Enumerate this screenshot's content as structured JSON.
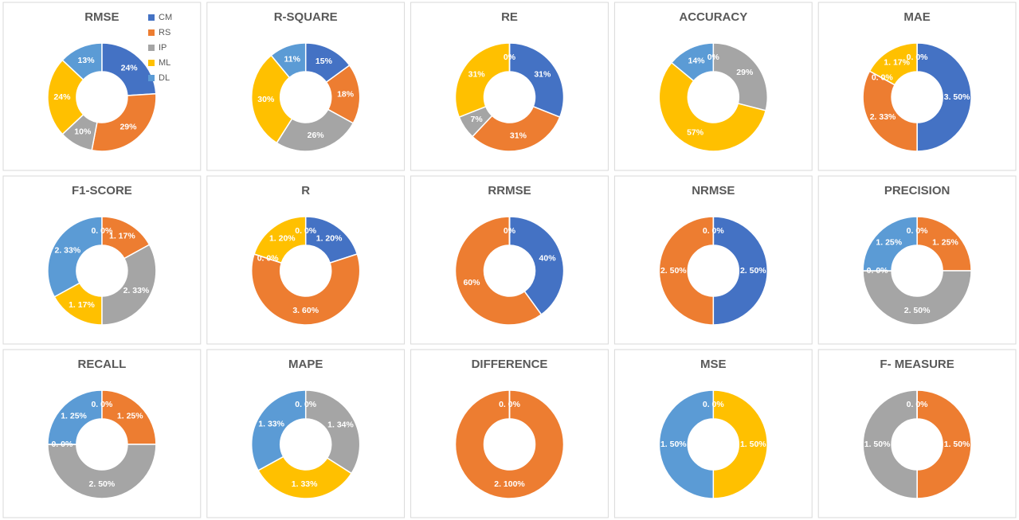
{
  "chart_data": [
    {
      "type": "pie",
      "title": "RMSE",
      "legend": true,
      "categories": [
        "CM",
        "RS",
        "IP",
        "ML",
        "DL"
      ],
      "colors": [
        "#4472c4",
        "#ed7d31",
        "#a5a5a5",
        "#ffc000",
        "#5b9bd5"
      ],
      "values": [
        24,
        29,
        10,
        24,
        13
      ],
      "value_labels": [
        "24%",
        "29%",
        "10%",
        "24%",
        "13%"
      ]
    },
    {
      "type": "pie",
      "title": "R-SQUARE",
      "categories": [
        "CM",
        "RS",
        "IP",
        "ML",
        "DL"
      ],
      "colors": [
        "#4472c4",
        "#ed7d31",
        "#a5a5a5",
        "#ffc000",
        "#5b9bd5"
      ],
      "values": [
        15,
        18,
        26,
        30,
        11
      ],
      "value_labels": [
        "15%",
        "18%",
        "26%",
        "30%",
        "11%"
      ]
    },
    {
      "type": "pie",
      "title": "RE",
      "categories": [
        "CM",
        "RS",
        "IP",
        "ML",
        "DL"
      ],
      "colors": [
        "#4472c4",
        "#ed7d31",
        "#a5a5a5",
        "#ffc000",
        "#5b9bd5"
      ],
      "values": [
        31,
        31,
        7,
        31,
        0
      ],
      "value_labels": [
        "31%",
        "31%",
        "7%",
        "31%",
        "0%"
      ]
    },
    {
      "type": "pie",
      "title": "ACCURACY",
      "categories": [
        "CM",
        "RS",
        "IP",
        "ML",
        "DL"
      ],
      "colors": [
        "#4472c4",
        "#ed7d31",
        "#a5a5a5",
        "#ffc000",
        "#5b9bd5"
      ],
      "values": [
        0,
        0,
        29,
        57,
        14
      ],
      "value_labels": [
        "0%",
        null,
        "29%",
        "57%",
        "14%"
      ]
    },
    {
      "type": "pie",
      "title": "MAE",
      "categories": [
        "CM",
        "RS",
        "IP",
        "ML",
        "DL"
      ],
      "colors": [
        "#4472c4",
        "#ed7d31",
        "#a5a5a5",
        "#ffc000",
        "#5b9bd5"
      ],
      "values": [
        50,
        33,
        0,
        17,
        0
      ],
      "value_labels": [
        "3. 50%",
        "2. 33%",
        "0. 0%",
        "1. 17%",
        "0. 0%"
      ]
    },
    {
      "type": "pie",
      "title": "F1-SCORE",
      "categories": [
        "CM",
        "RS",
        "IP",
        "ML",
        "DL"
      ],
      "colors": [
        "#4472c4",
        "#ed7d31",
        "#a5a5a5",
        "#ffc000",
        "#5b9bd5"
      ],
      "values": [
        0,
        17,
        33,
        17,
        33
      ],
      "value_labels": [
        "0. 0%",
        "1. 17%",
        "2. 33%",
        "1. 17%",
        "2. 33%"
      ]
    },
    {
      "type": "pie",
      "title": "R",
      "categories": [
        "CM",
        "RS",
        "IP",
        "ML",
        "DL"
      ],
      "colors": [
        "#4472c4",
        "#ed7d31",
        "#a5a5a5",
        "#ffc000",
        "#5b9bd5"
      ],
      "values": [
        20,
        60,
        0,
        20,
        0
      ],
      "value_labels": [
        "1. 20%",
        "3. 60%",
        "0. 0%",
        "1. 20%",
        "0. 0%"
      ]
    },
    {
      "type": "pie",
      "title": "RRMSE",
      "categories": [
        "CM",
        "RS",
        "IP",
        "ML",
        "DL"
      ],
      "colors": [
        "#4472c4",
        "#ed7d31",
        "#a5a5a5",
        "#ffc000",
        "#5b9bd5"
      ],
      "values": [
        40,
        60,
        0,
        0,
        0
      ],
      "value_labels": [
        "40%",
        "60%",
        null,
        null,
        "0%"
      ]
    },
    {
      "type": "pie",
      "title": "NRMSE",
      "categories": [
        "CM",
        "RS",
        "IP",
        "ML",
        "DL"
      ],
      "colors": [
        "#4472c4",
        "#ed7d31",
        "#a5a5a5",
        "#ffc000",
        "#5b9bd5"
      ],
      "values": [
        50,
        50,
        0,
        0,
        0
      ],
      "value_labels": [
        "2. 50%",
        "2. 50%",
        null,
        null,
        "0. 0%"
      ]
    },
    {
      "type": "pie",
      "title": "PRECISION",
      "categories": [
        "CM",
        "RS",
        "IP",
        "ML",
        "DL"
      ],
      "colors": [
        "#4472c4",
        "#ed7d31",
        "#a5a5a5",
        "#ffc000",
        "#5b9bd5"
      ],
      "values": [
        0,
        25,
        50,
        0,
        25
      ],
      "value_labels": [
        "0. 0%",
        "1. 25%",
        "2. 50%",
        "0. 0%",
        "1. 25%"
      ]
    },
    {
      "type": "pie",
      "title": "RECALL",
      "categories": [
        "CM",
        "RS",
        "IP",
        "ML",
        "DL"
      ],
      "colors": [
        "#4472c4",
        "#ed7d31",
        "#a5a5a5",
        "#ffc000",
        "#5b9bd5"
      ],
      "values": [
        0,
        25,
        50,
        0,
        25
      ],
      "value_labels": [
        "0. 0%",
        "1. 25%",
        "2. 50%",
        "0. 0%",
        "1. 25%"
      ]
    },
    {
      "type": "pie",
      "title": "MAPE",
      "categories": [
        "CM",
        "RS",
        "IP",
        "ML",
        "DL"
      ],
      "colors": [
        "#4472c4",
        "#ed7d31",
        "#a5a5a5",
        "#ffc000",
        "#5b9bd5"
      ],
      "values": [
        0,
        0,
        34,
        33,
        33
      ],
      "value_labels": [
        "0. 0%",
        null,
        "1. 34%",
        "1. 33%",
        "1. 33%"
      ]
    },
    {
      "type": "pie",
      "title": "DIFFERENCE",
      "categories": [
        "CM",
        "RS",
        "IP",
        "ML",
        "DL"
      ],
      "colors": [
        "#4472c4",
        "#ed7d31",
        "#a5a5a5",
        "#ffc000",
        "#5b9bd5"
      ],
      "values": [
        0,
        100,
        0,
        0,
        0
      ],
      "value_labels": [
        "0. 0%",
        "2. 100%",
        null,
        null,
        null
      ]
    },
    {
      "type": "pie",
      "title": "MSE",
      "categories": [
        "CM",
        "RS",
        "IP",
        "ML",
        "DL"
      ],
      "colors": [
        "#4472c4",
        "#ed7d31",
        "#a5a5a5",
        "#ffc000",
        "#5b9bd5"
      ],
      "values": [
        0,
        0,
        0,
        50,
        50
      ],
      "value_labels": [
        "0. 0%",
        null,
        null,
        "1. 50%",
        "1. 50%"
      ]
    },
    {
      "type": "pie",
      "title": "F- MEASURE",
      "categories": [
        "CM",
        "RS",
        "IP",
        "ML",
        "DL"
      ],
      "colors": [
        "#4472c4",
        "#ed7d31",
        "#a5a5a5",
        "#ffc000",
        "#5b9bd5"
      ],
      "values": [
        0,
        50,
        50,
        0,
        0
      ],
      "value_labels": [
        "0. 0%",
        "1. 50%",
        "1. 50%",
        null,
        null
      ]
    }
  ]
}
